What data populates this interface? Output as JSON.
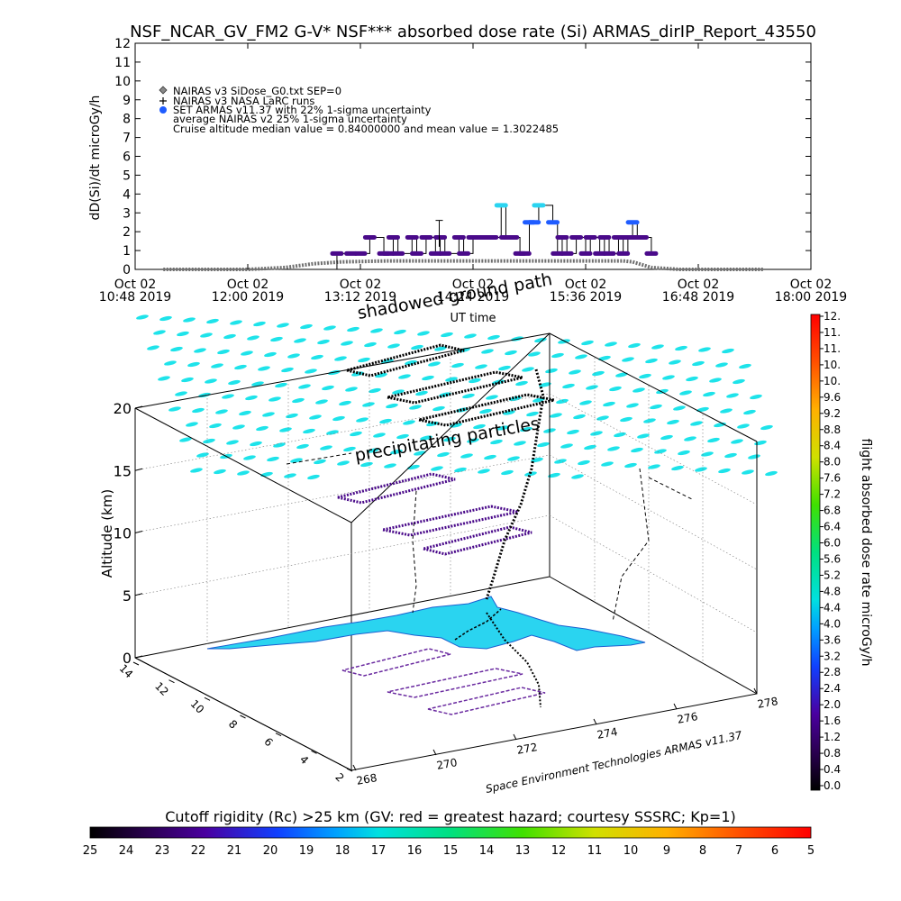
{
  "title": "NSF_NCAR_GV_FM2 G-V* NSF*** absorbed dose rate (Si) ARMAS_dirIP_Report_43550",
  "colors": {
    "nairas_v3": "#707070",
    "armas_purple": "#4a0a8a",
    "armas_blue": "#1f5cff",
    "armas_cyan": "#2ad4f0",
    "precip_cyan": "#1ee3ea",
    "map_land": "#2ad4f0"
  },
  "chart_data": [
    {
      "type": "line",
      "title": "NSF_NCAR_GV_FM2 G-V* NSF*** absorbed dose rate (Si) ARMAS_dirIP_Report_43550",
      "ylabel": "dD(Si)/dt microGy/h",
      "xlabel": "UT time",
      "ylim": [
        0,
        12
      ],
      "y_ticks": [
        "0",
        "1",
        "2",
        "3",
        "4",
        "5",
        "6",
        "7",
        "8",
        "9",
        "10",
        "11",
        "12"
      ],
      "x_ticks": [
        {
          "line1": "Oct 02",
          "line2": "10:48 2019"
        },
        {
          "line1": "Oct 02",
          "line2": "12:00 2019"
        },
        {
          "line1": "Oct 02",
          "line2": "13:12 2019"
        },
        {
          "line1": "Oct 02",
          "line2": "14:24 2019"
        },
        {
          "line1": "Oct 02",
          "line2": "15:36 2019"
        },
        {
          "line1": "Oct 02",
          "line2": "16:48 2019"
        },
        {
          "line1": "Oct 02",
          "line2": "18:00 2019"
        }
      ],
      "xlim_hours": [
        10.8,
        18.0
      ],
      "legend": [
        {
          "marker": "diamond",
          "label": "NAIRAS v3 SiDose_G0.txt SEP=0"
        },
        {
          "marker": "plus",
          "label": "NAIRAS v3 NASA LaRC runs"
        },
        {
          "marker": "dot",
          "label": "SET ARMAS v11.37 with 22% 1-sigma uncertainty"
        },
        {
          "marker": "none",
          "label": "average NAIRAS v2 25% 1-sigma uncertainty"
        },
        {
          "marker": "none",
          "label": "Cruise altitude median value = 0.84000000 and mean value = 1.3022485"
        }
      ],
      "annotations": [
        "shadowed ground path"
      ],
      "series": [
        {
          "name": "NAIRAS v3 SiDose_G0.txt SEP=0",
          "x": [
            11.1,
            12.0,
            12.4,
            12.7,
            13.0,
            13.5,
            14.0,
            14.5,
            15.0,
            15.5,
            16.0,
            16.1,
            16.3,
            16.6,
            17.5
          ],
          "y": [
            0.0,
            0.0,
            0.1,
            0.3,
            0.4,
            0.45,
            0.45,
            0.45,
            0.45,
            0.45,
            0.45,
            0.4,
            0.1,
            0.0,
            0.0
          ]
        },
        {
          "name": "SET ARMAS v11.37 with 22% 1-sigma uncertainty",
          "x": [
            12.92,
            12.95,
            13.1,
            13.2,
            13.3,
            13.45,
            13.5,
            13.55,
            13.6,
            13.75,
            13.8,
            13.9,
            14.0,
            14.05,
            14.1,
            14.25,
            14.3,
            14.4,
            14.45,
            14.5,
            14.6,
            14.7,
            14.75,
            14.8,
            14.82,
            14.9,
            14.95,
            15.0,
            15.05,
            15.1,
            15.25,
            15.3,
            15.35,
            15.4,
            15.5,
            15.6,
            15.65,
            15.75,
            15.8,
            15.85,
            15.95,
            16.0,
            16.05,
            16.1,
            16.15,
            16.2,
            16.3
          ],
          "y": [
            0.0,
            0.84,
            0.84,
            0.84,
            1.7,
            0.84,
            0.84,
            1.7,
            0.84,
            1.7,
            0.84,
            1.7,
            0.84,
            1.7,
            0.84,
            1.7,
            0.84,
            1.7,
            1.7,
            1.7,
            1.7,
            3.4,
            1.7,
            1.7,
            1.7,
            0.84,
            0.84,
            2.5,
            2.5,
            3.4,
            2.5,
            0.84,
            1.7,
            0.84,
            1.7,
            0.84,
            1.7,
            0.84,
            1.7,
            0.84,
            1.7,
            0.84,
            1.7,
            2.5,
            1.7,
            1.7,
            0.84
          ]
        }
      ]
    },
    {
      "type": "scatter",
      "title": "",
      "xlabel": "",
      "ylabel": "",
      "zlabel": "Altitude (km)",
      "zlim": [
        0,
        20
      ],
      "z_ticks": [
        "0",
        "5",
        "10",
        "15",
        "20"
      ],
      "lon_ticks": [
        "268",
        "270",
        "272",
        "274",
        "276",
        "278"
      ],
      "lat_ticks": [
        "2",
        "4",
        "6",
        "8",
        "10",
        "12",
        "14"
      ],
      "annotations": [
        "precipitating particles"
      ],
      "credit": "Space Environment Technologies ARMAS v11.37",
      "series": [
        {
          "name": "",
          "x": [
            270.5,
            271.5,
            272.5,
            273.5,
            274.5,
            275.5,
            276.5
          ],
          "y": [
            11.8,
            11.0,
            10.2,
            9.4,
            8.6,
            7.8,
            7.0
          ],
          "z": [
            13.0,
            12.0,
            11.2,
            11.8,
            12.1,
            11.5,
            10.8
          ]
        }
      ]
    }
  ],
  "colorbar_right": {
    "title": "flight absorbed dose rate microGy/h",
    "ticks": [
      "12.",
      "11.",
      "11.",
      "10.",
      "10.",
      "9.6",
      "9.2",
      "8.8",
      "8.4",
      "8.0",
      "7.6",
      "7.2",
      "6.8",
      "6.4",
      "6.0",
      "5.6",
      "5.2",
      "4.8",
      "4.4",
      "4.0",
      "3.6",
      "3.2",
      "2.8",
      "2.4",
      "2.0",
      "1.6",
      "1.2",
      "0.8",
      "0.4",
      "0.0"
    ]
  },
  "colorbar_bottom": {
    "title": "Cutoff rigidity (Rc) >25 km (GV: red = greatest hazard; courtesy SSSRC; Kp=1)",
    "ticks": [
      "25",
      "24",
      "23",
      "22",
      "21",
      "20",
      "19",
      "18",
      "17",
      "16",
      "15",
      "14",
      "13",
      "12",
      "11",
      "10",
      "9",
      "8",
      "7",
      "6",
      "5"
    ]
  }
}
